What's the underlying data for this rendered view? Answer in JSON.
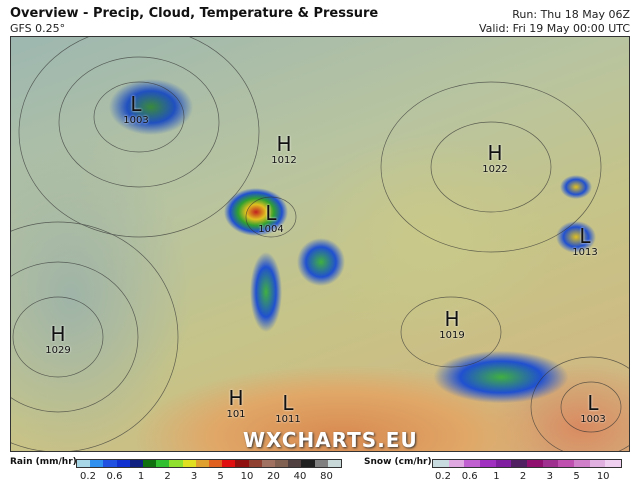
{
  "header": {
    "title": "Overview - Precip, Cloud, Temperature & Pressure",
    "model": "GFS 0.25°",
    "run": "Run: Thu 18 May 06Z",
    "valid": "Valid: Fri 19 May 00:00 UTC"
  },
  "watermark": "WXCHARTS.EU",
  "pressure_systems": [
    {
      "type": "L",
      "value": "1003"
    },
    {
      "type": "H",
      "value": "1012"
    },
    {
      "type": "L",
      "value": "1004"
    },
    {
      "type": "H",
      "value": "1022"
    },
    {
      "type": "L",
      "value": "1013"
    },
    {
      "type": "H",
      "value": "1029"
    },
    {
      "type": "H",
      "value": "1019"
    },
    {
      "type": "L",
      "value": "1003"
    },
    {
      "type": "H",
      "value": "101"
    },
    {
      "type": "L",
      "value": "1011"
    }
  ],
  "legend": {
    "rain": {
      "label": "Rain (mm/hr)",
      "ticks": [
        "0.2",
        "0.6",
        "1",
        "2",
        "3",
        "5",
        "10",
        "20",
        "40",
        "80"
      ],
      "colors": [
        "#a8d8e8",
        "#3090f0",
        "#2050e0",
        "#1030d0",
        "#102080",
        "#107010",
        "#30c030",
        "#90e030",
        "#e0e020",
        "#e0a030",
        "#e06020",
        "#e01010",
        "#901010",
        "#904030",
        "#a07060",
        "#806050",
        "#504040",
        "#202020",
        "#808080",
        "#c8d8d8"
      ]
    },
    "snow": {
      "label": "Snow (cm/hr)",
      "ticks": [
        "0.2",
        "0.6",
        "1",
        "2",
        "3",
        "5",
        "10"
      ],
      "colors": [
        "#c8dce0",
        "#e0a8e0",
        "#c060d0",
        "#a030c0",
        "#8020a0",
        "#502060",
        "#901070",
        "#a03090",
        "#c050b0",
        "#d080c8",
        "#e0b0e0",
        "#f0d0f0"
      ]
    }
  }
}
